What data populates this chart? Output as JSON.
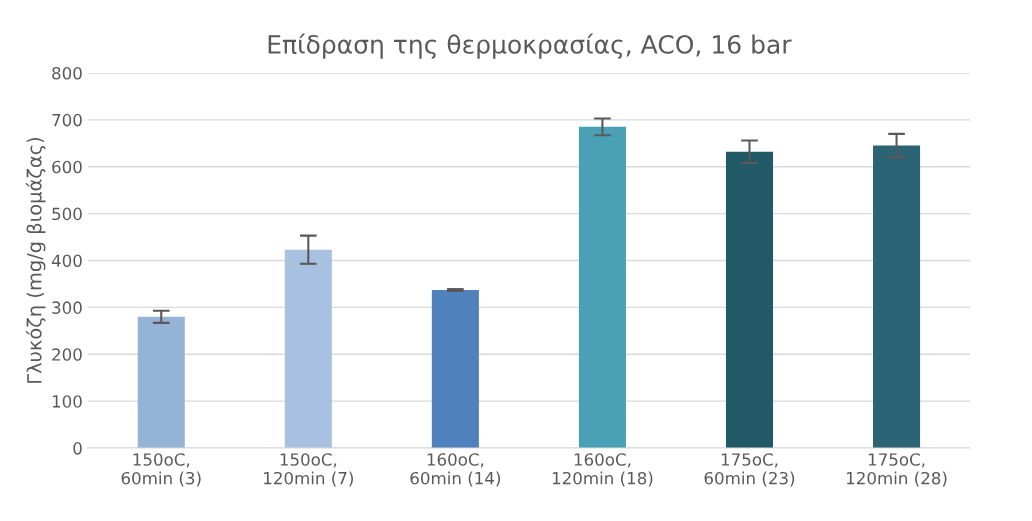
{
  "chart_data": {
    "type": "bar",
    "title": "Επίδραση της θερμοκρασίας, ACO, 16 bar",
    "ylabel": "Γλυκόζη (mg/g βιομάζας)",
    "categories": [
      "150oC,\n60min (3)",
      "150oC,\n120min (7)",
      "160oC,\n60min (14)",
      "160oC,\n120min (18)",
      "175oC,\n60min (23)",
      "175oC,\n120min (28)"
    ],
    "values": [
      280,
      423,
      337,
      685,
      632,
      645
    ],
    "errors": [
      13,
      30,
      2,
      18,
      24,
      25
    ],
    "colors": [
      "#95b3d7",
      "#a9c1e0",
      "#4f81bd",
      "#4aa0b5",
      "#215968",
      "#2b6575"
    ],
    "ylim": [
      0,
      800
    ],
    "yticks": [
      0,
      100,
      200,
      300,
      400,
      500,
      600,
      700,
      800
    ],
    "grid": "y"
  }
}
